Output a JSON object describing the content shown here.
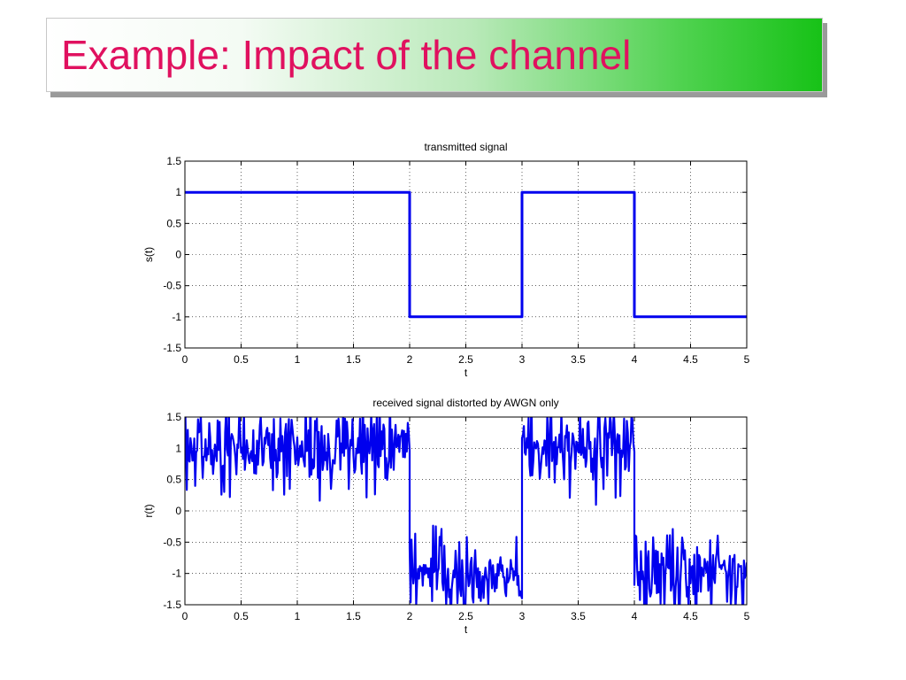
{
  "slide": {
    "title": "Example: Impact of the channel",
    "colors": {
      "title": "#e0115f",
      "banner_start": "#ffffff",
      "banner_end": "#17c217",
      "series": "#0000ee"
    }
  },
  "chart_data": [
    {
      "type": "line",
      "title": "transmitted signal",
      "xlabel": "t",
      "ylabel": "s(t)",
      "xlim": [
        0,
        5
      ],
      "ylim": [
        -1.5,
        1.5
      ],
      "xticks": [
        "0",
        "0.5",
        "1",
        "1.5",
        "2",
        "2.5",
        "3",
        "3.5",
        "4",
        "4.5",
        "5"
      ],
      "yticks": [
        "1.5",
        "1",
        "0.5",
        "0",
        "-0.5",
        "-1",
        "-1.5"
      ],
      "grid": true,
      "series": [
        {
          "color": "#0000ee",
          "style": "step",
          "x": [
            0,
            2,
            2,
            3,
            3,
            4,
            4,
            5
          ],
          "y": [
            1,
            1,
            -1,
            -1,
            1,
            1,
            -1,
            -1
          ]
        }
      ]
    },
    {
      "type": "line",
      "title": "received signal distorted by AWGN only",
      "xlabel": "t",
      "ylabel": "r(t)",
      "xlim": [
        0,
        5
      ],
      "ylim": [
        -1.5,
        1.5
      ],
      "xticks": [
        "0",
        "0.5",
        "1",
        "1.5",
        "2",
        "2.5",
        "3",
        "3.5",
        "4",
        "4.5",
        "5"
      ],
      "yticks": [
        "1.5",
        "1",
        "0.5",
        "0",
        "-0.5",
        "-1",
        "-1.5"
      ],
      "grid": true,
      "series": [
        {
          "color": "#0000ee",
          "style": "noisy",
          "segments": [
            {
              "x_start": 0,
              "x_end": 2,
              "level": 1
            },
            {
              "x_start": 2,
              "x_end": 3,
              "level": -1
            },
            {
              "x_start": 3,
              "x_end": 4,
              "level": 1
            },
            {
              "x_start": 4,
              "x_end": 5,
              "level": -1
            }
          ],
          "noise_std": 0.35
        }
      ]
    }
  ]
}
